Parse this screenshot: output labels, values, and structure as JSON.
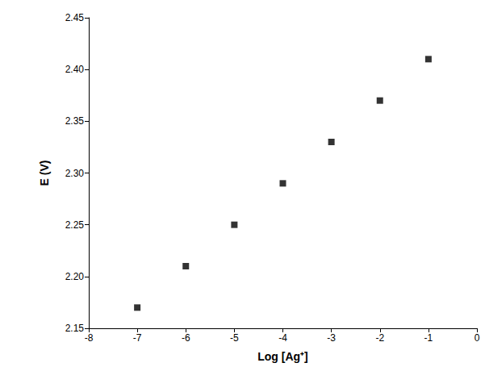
{
  "chart_data": {
    "type": "scatter",
    "x_label": "Log [Ag⁺]",
    "y_label": "E (V)",
    "x": [
      -7,
      -6,
      -5,
      -4,
      -3,
      -2,
      -1
    ],
    "values": [
      2.17,
      2.21,
      2.25,
      2.29,
      2.33,
      2.37,
      2.41
    ],
    "color": "#000000",
    "marker": "square",
    "xlim": [
      -8,
      0
    ],
    "xticks": [
      -8,
      -7,
      -6,
      -5,
      -4,
      -3,
      -2,
      -1,
      0
    ],
    "ylim": [
      2.15,
      2.45
    ],
    "yticks": [
      {
        "value": 2.15,
        "label": "2.15"
      },
      {
        "value": 2.2,
        "label": "2.20"
      },
      {
        "value": 2.25,
        "label": "2.25"
      },
      {
        "value": 2.3,
        "label": "2.30"
      },
      {
        "value": 2.35,
        "label": "2.35"
      },
      {
        "value": 2.4,
        "label": "2.40"
      },
      {
        "value": 2.45,
        "label": "2.45"
      }
    ],
    "grid": false
  }
}
